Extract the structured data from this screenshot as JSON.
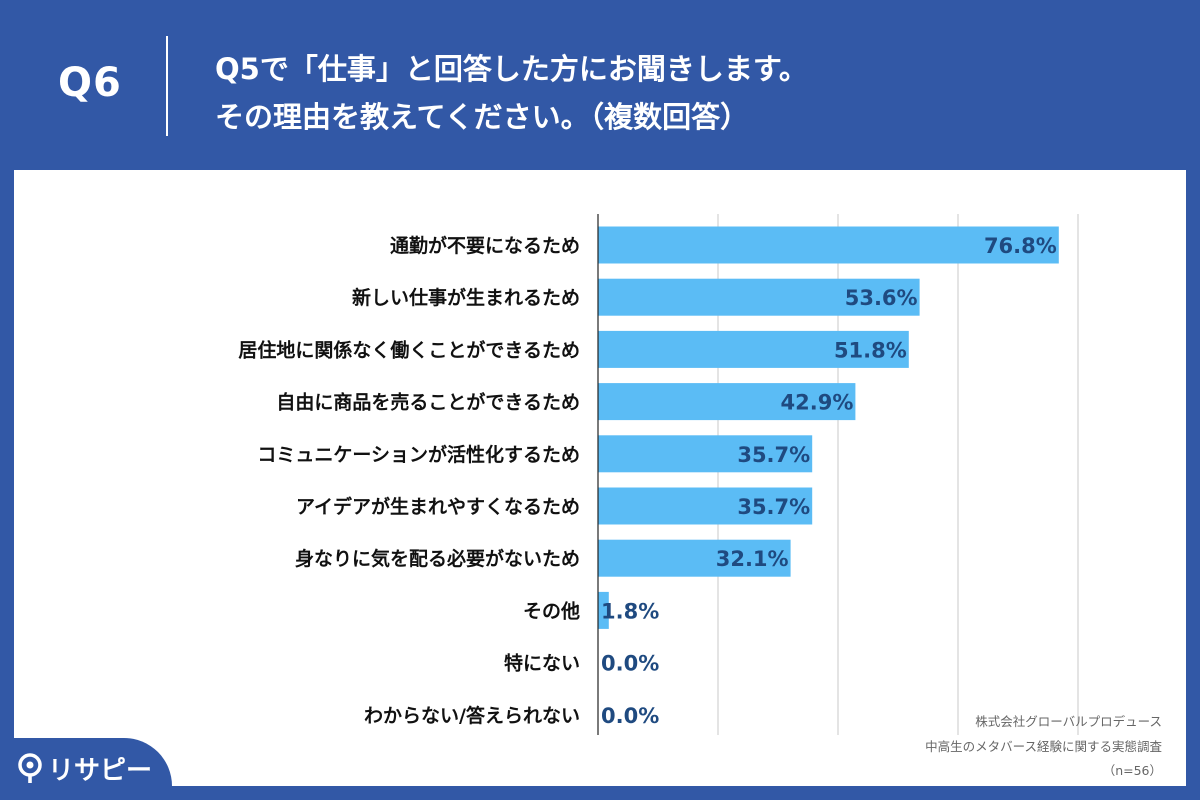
{
  "header": {
    "question_number": "Q6",
    "question_line1": "Q5で「仕事」と回答した方にお聞きします。",
    "question_line2": "その理由を教えてください。（複数回答）"
  },
  "colors": {
    "background": "#3258a6",
    "panel": "#ffffff",
    "bar": "#5bbcf5",
    "value_text": "#1f4a80",
    "grid": "#c8c8c8"
  },
  "chart_data": {
    "type": "bar",
    "orientation": "horizontal",
    "categories": [
      "通勤が不要になるため",
      "新しい仕事が生まれるため",
      "居住地に関係なく働くことができるため",
      "自由に商品を売ることができるため",
      "コミュニケーションが活性化するため",
      "アイデアが生まれやすくなるため",
      "身なりに気を配る必要がないため",
      "その他",
      "特にない",
      "わからない/答えられない"
    ],
    "values": [
      76.8,
      53.6,
      51.8,
      42.9,
      35.7,
      35.7,
      32.1,
      1.8,
      0.0,
      0.0
    ],
    "value_labels": [
      "76.8%",
      "53.6%",
      "51.8%",
      "42.9%",
      "35.7%",
      "35.7%",
      "32.1%",
      "1.8%",
      "0.0%",
      "0.0%"
    ],
    "xlim": [
      0,
      100
    ],
    "grid": true,
    "legend": "none",
    "title": "",
    "xlabel": "",
    "ylabel": ""
  },
  "source": {
    "line1": "株式会社グローバルプロデュース",
    "line2": "中高生のメタバース経験に関する実態調査",
    "line3": "（n=56）"
  },
  "logo": {
    "text": "リサピー",
    "icon": "pin-icon"
  }
}
